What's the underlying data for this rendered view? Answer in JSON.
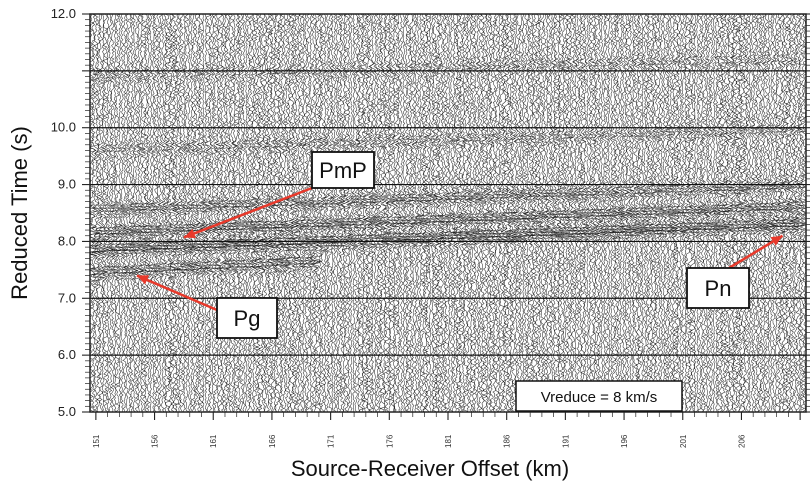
{
  "chart_data": {
    "type": "seismic-record-section",
    "xlabel": "Source-Receiver Offset (km)",
    "ylabel": "Reduced Time (s)",
    "ylim": [
      5.0,
      12.0
    ],
    "xlim": [
      150.5,
      211.5
    ],
    "yticks": [
      {
        "value": 12.0,
        "label": "12.0"
      },
      {
        "value": 10.0,
        "label": "10.0"
      },
      {
        "value": 9.0,
        "label": "9.0"
      },
      {
        "value": 8.0,
        "label": "8.0"
      },
      {
        "value": 7.0,
        "label": "7.0"
      },
      {
        "value": 6.0,
        "label": "6.0"
      },
      {
        "value": 5.0,
        "label": "5.0"
      }
    ],
    "xticks": [
      {
        "value": 151,
        "label": "151"
      },
      {
        "value": 156,
        "label": "156"
      },
      {
        "value": 161,
        "label": "161"
      },
      {
        "value": 166,
        "label": "166"
      },
      {
        "value": 171,
        "label": "171"
      },
      {
        "value": 176,
        "label": "176"
      },
      {
        "value": 181,
        "label": "181"
      },
      {
        "value": 186,
        "label": "186"
      },
      {
        "value": 191,
        "label": "191"
      },
      {
        "value": 196,
        "label": "196"
      },
      {
        "value": 201,
        "label": "201"
      },
      {
        "value": 206,
        "label": "206"
      }
    ],
    "gridlines_y": [
      11.0,
      10.0,
      9.0,
      8.0,
      7.0,
      6.0
    ],
    "annotations": [
      {
        "label": "PmP",
        "arrow_to": {
          "x": 158.5,
          "y": 8.07
        }
      },
      {
        "label": "Pg",
        "arrow_to": {
          "x": 154.5,
          "y": 7.4
        }
      },
      {
        "label": "Pn",
        "arrow_to": {
          "x": 209.5,
          "y": 8.1
        }
      }
    ],
    "note": "Vreduce = 8 km/s",
    "arrow_color": "#e8392b",
    "trace_color": "#000000",
    "grid": true
  }
}
